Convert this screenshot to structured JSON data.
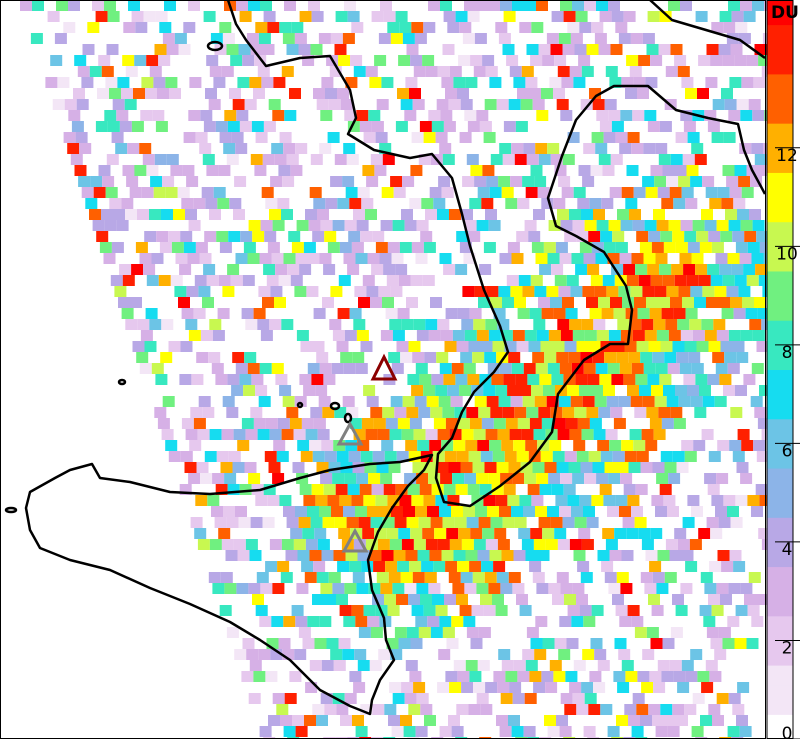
{
  "chart_data": {
    "type": "heatmap",
    "colorbar_label": "DU",
    "clim": [
      0,
      15
    ],
    "cticks": [
      0,
      2,
      4,
      6,
      8,
      10,
      12
    ],
    "colorscale": [
      "#ffffff",
      "#f3e6f6",
      "#e6c8ee",
      "#d6b0e6",
      "#b8a8e6",
      "#8cb4e8",
      "#6cc4e6",
      "#16dcf0",
      "#38e8c0",
      "#70f080",
      "#c8f850",
      "#ffff00",
      "#ffb000",
      "#ff6000",
      "#ff2000",
      "#ff0000"
    ]
  }
}
